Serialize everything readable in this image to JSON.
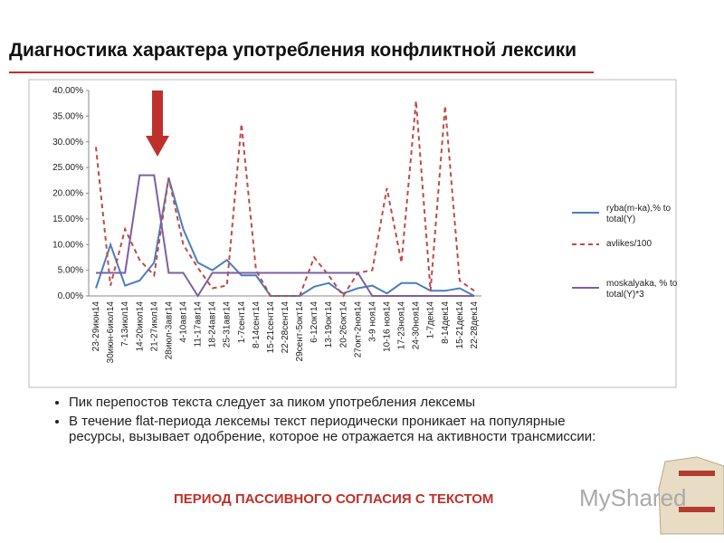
{
  "header": {
    "title": "Диагностика характера употребления конфликтной лексики"
  },
  "chart_data": {
    "type": "line",
    "categories": [
      "23-29июн14",
      "30июн-6июл14",
      "7-13июл14",
      "14-20июл14",
      "21-27июл14",
      "28июл-3авг14",
      "4-10авг14",
      "11-17авг14",
      "18-24авг14",
      "25-31авг14",
      "1-7сент14",
      "8-14сент14",
      "15-21сент14",
      "22-28сент14",
      "29сент-5окт14",
      "6-12окт14",
      "13-19окт14",
      "20-26окт14",
      "27окт-2ноя14",
      "3-9 ноя14",
      "10-16 ноя14",
      "17-23ноя14",
      "24-30ноя14",
      "1-7дек14",
      "8-14дек14",
      "15-21дек14",
      "22-28дек14"
    ],
    "series": [
      {
        "name": "ryba(m-ka),% to total(Y)",
        "color": "#4a7ebb",
        "dash": false,
        "values": [
          1.5,
          10,
          2,
          3,
          6.5,
          23,
          13,
          6.5,
          5,
          7,
          4,
          4,
          0,
          0,
          0,
          1.8,
          2.5,
          0.5,
          1.5,
          2,
          0.5,
          2.5,
          2.5,
          1,
          1,
          1.5,
          0
        ]
      },
      {
        "name": "avlikes/100",
        "color": "#be4b48",
        "dash": true,
        "values": [
          29,
          2,
          13,
          7,
          4,
          23,
          10,
          5.5,
          1.5,
          2,
          33.5,
          5,
          0,
          0,
          0,
          7.5,
          4,
          0,
          4.5,
          5,
          21,
          6.5,
          38,
          1,
          37,
          3,
          1
        ]
      },
      {
        "name": "moskalyaka, % to total(Y)*3",
        "color": "#7d60a0",
        "dash": false,
        "values": [
          4.5,
          4.5,
          4.5,
          23.5,
          23.5,
          4.5,
          4.5,
          0,
          4.5,
          4.5,
          4.5,
          4.5,
          4.5,
          4.5,
          4.5,
          4.5,
          4.5,
          4.5,
          4.5,
          0,
          0,
          0,
          0,
          0,
          0,
          0,
          0
        ]
      }
    ],
    "ylim": [
      0,
      40
    ],
    "yticks": [
      {
        "value": 0,
        "label": "0.00%"
      },
      {
        "value": 5,
        "label": "5.00%"
      },
      {
        "value": 10,
        "label": "10.00%"
      },
      {
        "value": 15,
        "label": "15.00%"
      },
      {
        "value": 20,
        "label": "20.00%"
      },
      {
        "value": 25,
        "label": "25.00%"
      },
      {
        "value": 30,
        "label": "30.00%"
      },
      {
        "value": 35,
        "label": "35.00%"
      },
      {
        "value": 40,
        "label": "40.00%"
      }
    ],
    "grid": false
  },
  "bullets": [
    "Пик перепостов текста следует за пиком употребления лексемы",
    "В течение flat-периода лексемы текст периодически проникает на популярные ресурсы, вызывает одобрение, которое не отражается на активности трансмиссии:"
  ],
  "conclusion": "ПЕРИОД ПАССИВНОГО СОГЛАСИЯ С ТЕКСТОМ",
  "watermark": "MyShared"
}
